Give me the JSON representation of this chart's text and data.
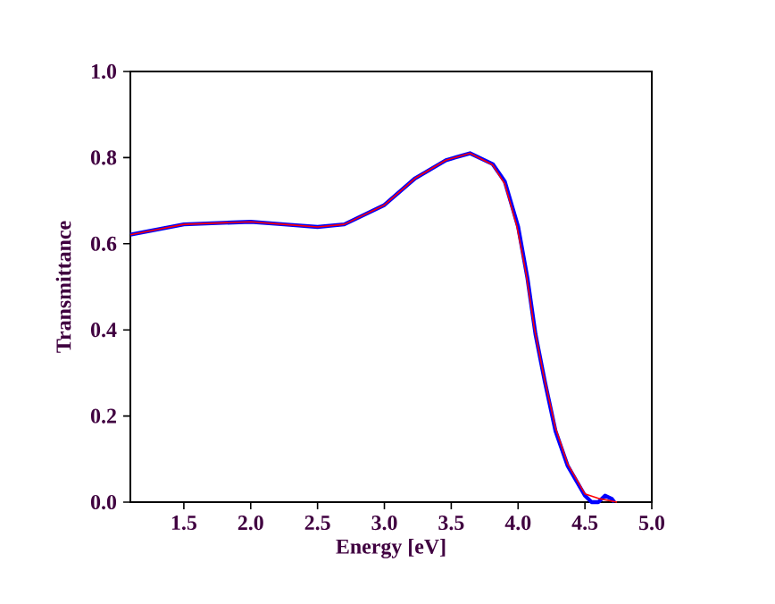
{
  "chart_data": {
    "type": "line",
    "xlabel": "Energy [eV]",
    "ylabel": "Transmittance",
    "xlim": [
      1.1,
      5.0
    ],
    "xticks": [
      1.5,
      {
        "value": 2,
        "label": "2.0"
      },
      2.5,
      {
        "value": 3,
        "label": "3.0"
      },
      3.5,
      {
        "value": 4,
        "label": "4.0"
      },
      4.5,
      {
        "value": 5,
        "label": "5.0"
      }
    ],
    "ylim": [
      0,
      1
    ],
    "yticks": [
      {
        "value": 0,
        "label": "0.0"
      },
      0.2,
      0.4,
      0.6,
      0.8,
      {
        "value": 1,
        "label": "1.0"
      }
    ],
    "grid": false,
    "marker": "none",
    "line_style": "solid",
    "series": [
      {
        "color": "#0000ff",
        "x": [
          1.1,
          1.5,
          2.0,
          2.25,
          2.5,
          2.7,
          3.0,
          3.23,
          3.46,
          3.64,
          3.81,
          3.9,
          4.0,
          4.07,
          4.13,
          4.2,
          4.28,
          4.37,
          4.5,
          4.55,
          4.6,
          4.65,
          4.7,
          4.72
        ],
        "values": [
          0.621,
          0.645,
          0.651,
          0.645,
          0.639,
          0.645,
          0.69,
          0.752,
          0.794,
          0.81,
          0.785,
          0.745,
          0.64,
          0.52,
          0.39,
          0.28,
          0.165,
          0.085,
          0.015,
          0.0,
          0.0,
          0.015,
          0.008,
          0.0
        ]
      },
      {
        "color": "#ff0000",
        "x": [
          1.1,
          1.5,
          2.0,
          2.25,
          2.5,
          2.7,
          3.0,
          3.23,
          3.46,
          3.64,
          3.81,
          3.9,
          3.99,
          4.06,
          4.12,
          4.19,
          4.28,
          4.37,
          4.5,
          4.61,
          4.74
        ],
        "values": [
          0.621,
          0.645,
          0.651,
          0.645,
          0.639,
          0.645,
          0.69,
          0.752,
          0.794,
          0.81,
          0.783,
          0.739,
          0.642,
          0.531,
          0.407,
          0.296,
          0.172,
          0.089,
          0.019,
          0.008,
          0.0
        ]
      }
    ]
  }
}
